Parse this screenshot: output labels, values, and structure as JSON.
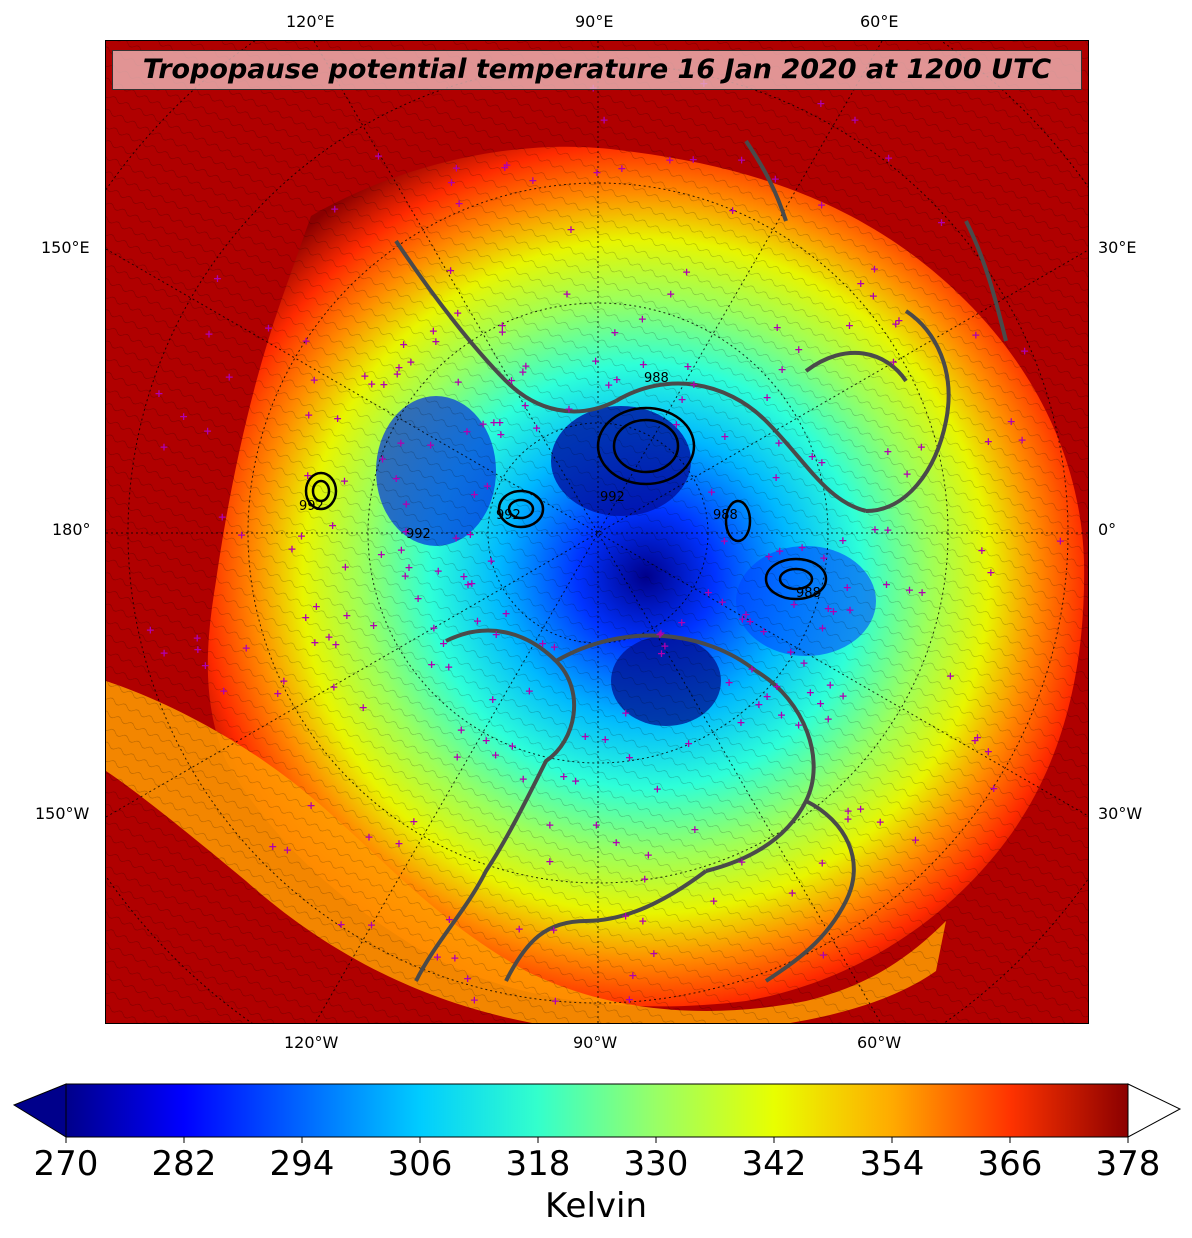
{
  "title": "Tropopause potential temperature 16 Jan 2020 at 1200 UTC",
  "map": {
    "projection": "north-polar-stereographic",
    "coastline_color": "#4a4a4a",
    "station_marker_color": "#b000b0",
    "contour_color": "#000000",
    "top_longitude_labels": [
      "120°E",
      "90°E",
      "60°E"
    ],
    "bottom_longitude_labels": [
      "120°W",
      "90°W",
      "60°W"
    ],
    "left_longitude_labels": [
      "150°E",
      "180°",
      "150°W"
    ],
    "right_longitude_labels": [
      "30°E",
      "0°",
      "30°W"
    ],
    "pressure_contour_labels": [
      "988",
      "992",
      "992",
      "992",
      "992",
      "988",
      "988"
    ]
  },
  "colorbar": {
    "label": "Kelvin",
    "min": 270,
    "max": 378,
    "extend": "both",
    "ticks": [
      "270",
      "282",
      "294",
      "306",
      "318",
      "330",
      "342",
      "354",
      "366",
      "378"
    ],
    "colors": [
      "#00008b",
      "#0000ff",
      "#0066ff",
      "#00ccff",
      "#33ffcc",
      "#99ff66",
      "#e8ff00",
      "#ffaa00",
      "#ff3300",
      "#8b0000"
    ]
  }
}
